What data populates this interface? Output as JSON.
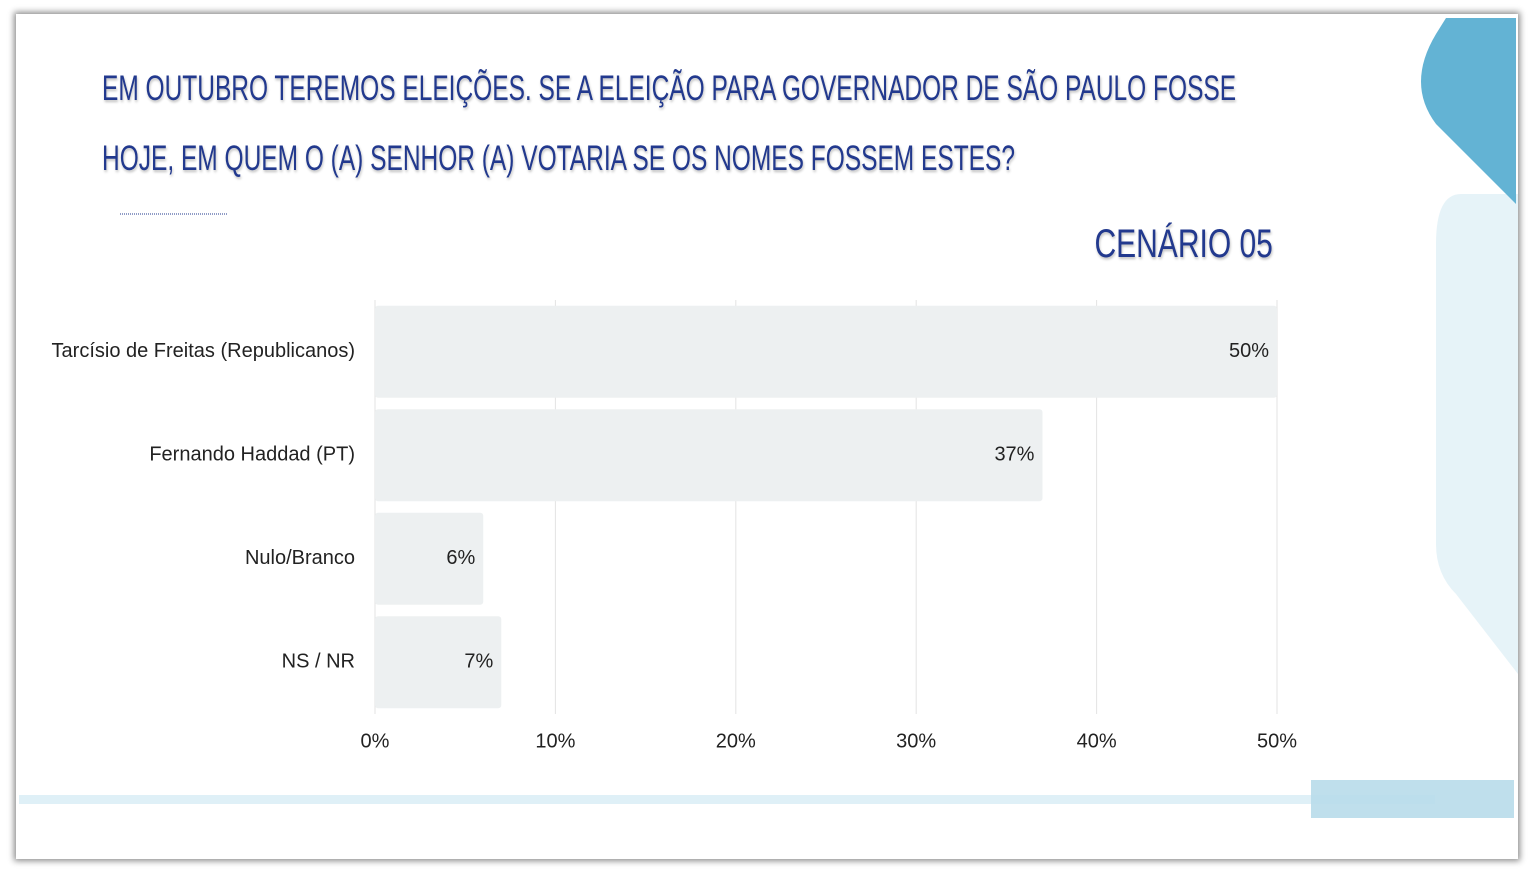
{
  "chart_data": {
    "type": "bar",
    "orientation": "horizontal",
    "title": "EM OUTUBRO TEREMOS ELEIÇÕES. SE A ELEIÇÃO PARA GOVERNADOR DE SÃO PAULO FOSSE HOJE, EM QUEM O (A) SENHOR (A) VOTARIA SE OS NOMES FOSSEM ESTES?",
    "subtitle": "CENÁRIO 05",
    "categories": [
      "Tarcísio de Freitas (Republicanos)",
      "Fernando Haddad (PT)",
      "Nulo/Branco",
      "NS / NR"
    ],
    "values": [
      50,
      37,
      6,
      7
    ],
    "value_labels": [
      "50%",
      "37%",
      "6%",
      "7%"
    ],
    "color": "#edf0f1",
    "xlim": [
      0,
      50
    ],
    "xticks": [
      {
        "value": 0,
        "label": "0%"
      },
      {
        "value": 10,
        "label": "10%"
      },
      {
        "value": 20,
        "label": "20%"
      },
      {
        "value": 30,
        "label": "30%"
      },
      {
        "value": 40,
        "label": "40%"
      },
      {
        "value": 50,
        "label": "50%"
      }
    ],
    "grid": true
  }
}
